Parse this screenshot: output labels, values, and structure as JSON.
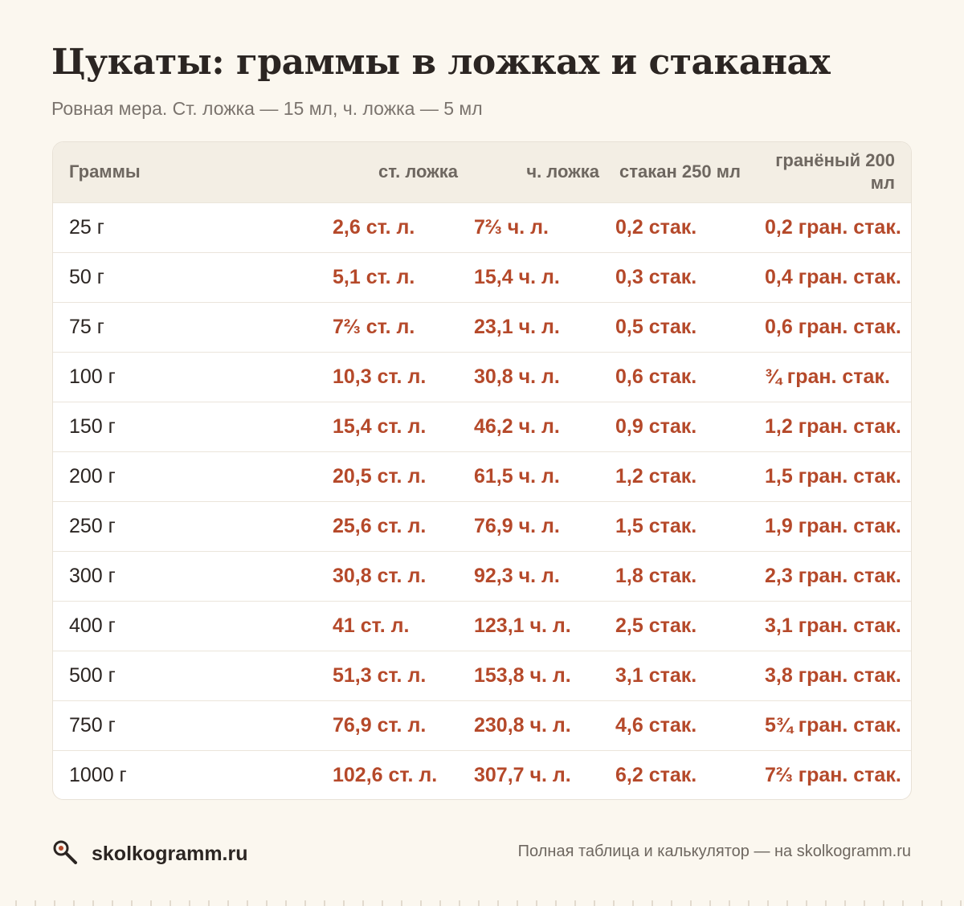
{
  "title": "Цукаты: граммы в ложках и стаканах",
  "subtitle": "Ровная мера. Ст. ложка — 15 мл, ч. ложка — 5 мл",
  "table": {
    "headers": [
      "Граммы",
      "ст. ложка",
      "ч. ложка",
      "стакан 250 мл",
      "гранёный 200 мл"
    ],
    "rows": [
      [
        "25 г",
        "2,6 ст. л.",
        "7⅔ ч. л.",
        "0,2 стак.",
        "0,2 гран. стак."
      ],
      [
        "50 г",
        "5,1 ст. л.",
        "15,4 ч. л.",
        "0,3 стак.",
        "0,4 гран. стак."
      ],
      [
        "75 г",
        "7⅔ ст. л.",
        "23,1 ч. л.",
        "0,5 стак.",
        "0,6 гран. стак."
      ],
      [
        "100 г",
        "10,3 ст. л.",
        "30,8 ч. л.",
        "0,6 стак.",
        "¾ гран. стак."
      ],
      [
        "150 г",
        "15,4 ст. л.",
        "46,2 ч. л.",
        "0,9 стак.",
        "1,2 гран. стак."
      ],
      [
        "200 г",
        "20,5 ст. л.",
        "61,5 ч. л.",
        "1,2 стак.",
        "1,5 гран. стак."
      ],
      [
        "250 г",
        "25,6 ст. л.",
        "76,9 ч. л.",
        "1,5 стак.",
        "1,9 гран. стак."
      ],
      [
        "300 г",
        "30,8 ст. л.",
        "92,3 ч. л.",
        "1,8 стак.",
        "2,3 гран. стак."
      ],
      [
        "400 г",
        "41 ст. л.",
        "123,1 ч. л.",
        "2,5 стак.",
        "3,1 гран. стак."
      ],
      [
        "500 г",
        "51,3 ст. л.",
        "153,8 ч. л.",
        "3,1 стак.",
        "3,8 гран. стак."
      ],
      [
        "750 г",
        "76,9 ст. л.",
        "230,8 ч. л.",
        "4,6 стак.",
        "5¾ гран. стак."
      ],
      [
        "1000 г",
        "102,6 ст. л.",
        "307,7 ч. л.",
        "6,2 стак.",
        "7⅔ гран. стак."
      ]
    ]
  },
  "footer": {
    "brand": "skolkogramm.ru",
    "brand_icon": "magnifier-icon",
    "note": "Полная таблица и калькулятор — на skolkogramm.ru"
  },
  "colors": {
    "background": "#fbf7ef",
    "accent": "#b5492a",
    "header_bg": "#f3eee4"
  }
}
